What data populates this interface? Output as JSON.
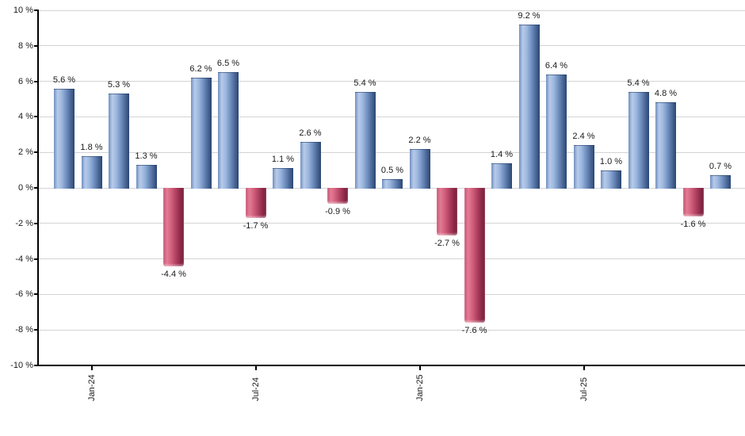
{
  "chart_data": {
    "type": "bar",
    "title": "",
    "xlabel": "",
    "ylabel": "",
    "ylim": [
      -10,
      10
    ],
    "grid": true,
    "legend": "none",
    "values": [
      5.6,
      1.8,
      5.3,
      1.3,
      -4.4,
      6.2,
      6.5,
      -1.7,
      1.1,
      2.6,
      -0.9,
      5.4,
      0.5,
      2.2,
      -2.7,
      -7.6,
      1.4,
      9.2,
      6.4,
      2.4,
      1.0,
      5.4,
      4.8,
      -1.6,
      0.7
    ],
    "bar_labels": [
      "5.6 %",
      "1.8 %",
      "5.3 %",
      "1.3 %",
      "-4.4 %",
      "6.2 %",
      "6.5 %",
      "-1.7 %",
      "1.1 %",
      "2.6 %",
      "-0.9 %",
      "5.4 %",
      "0.5 %",
      "2.2 %",
      "-2.7 %",
      "-7.6 %",
      "1.4 %",
      "9.2 %",
      "6.4 %",
      "2.4 %",
      "1.0 %",
      "5.4 %",
      "4.8 %",
      "-1.6 %",
      "0.7 %"
    ],
    "y_axis": {
      "ticks": [
        {
          "label": "10 %",
          "value": 10
        },
        {
          "label": "8 %",
          "value": 8
        },
        {
          "label": "6 %",
          "value": 6
        },
        {
          "label": "4 %",
          "value": 4
        },
        {
          "label": "2 %",
          "value": 2
        },
        {
          "label": "0 %",
          "value": 0
        },
        {
          "label": "-2 %",
          "value": -2
        },
        {
          "label": "-4 %",
          "value": -4
        },
        {
          "label": "-6 %",
          "value": -6
        },
        {
          "label": "-8 %",
          "value": -8
        },
        {
          "label": "-10 %",
          "value": -10
        }
      ]
    },
    "x_axis": {
      "ticks": [
        {
          "label": "Jan-24",
          "bar_index": 1
        },
        {
          "label": "Jul-24",
          "bar_index": 7
        },
        {
          "label": "Jan-25",
          "bar_index": 13
        },
        {
          "label": "Jul-25",
          "bar_index": 19
        }
      ]
    },
    "colors": {
      "positive_gradient": [
        "#7090c0",
        "#b7cbe9",
        "#9cb6de",
        "#6d8cbd",
        "#44618f",
        "#2b4775"
      ],
      "negative_gradient": [
        "#c25273",
        "#e47b93",
        "#d2617e",
        "#b04060",
        "#8a2746",
        "#771d3b"
      ],
      "gridline": "#d4d4d4",
      "axis": "#000000",
      "text": "#1a1a1a",
      "background": "#ffffff"
    }
  }
}
